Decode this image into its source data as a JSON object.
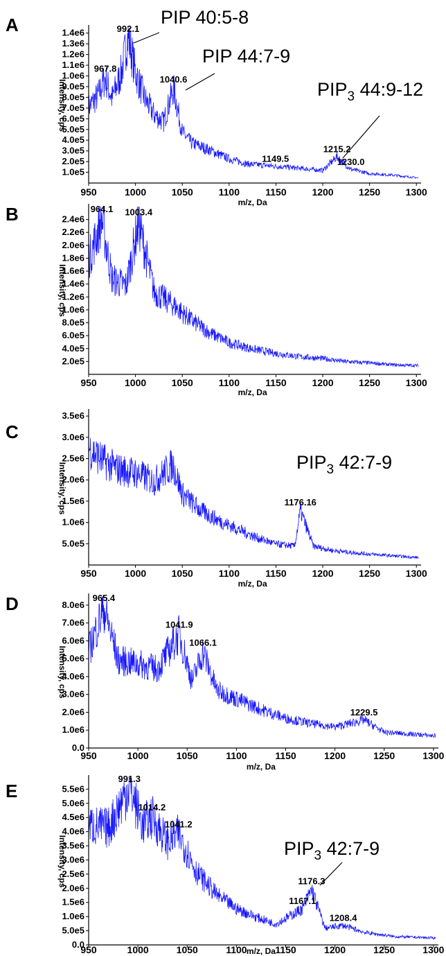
{
  "colors": {
    "trace": "#1515ff",
    "axis": "#000000",
    "text": "#000000"
  },
  "chart_data": [
    {
      "type": "line",
      "panel": "A",
      "xlabel": "m/z, Da",
      "ylabel": "Intensity, cps",
      "xlim": [
        950,
        1305
      ],
      "ylim": [
        0,
        1450000
      ],
      "x_ticks": [
        950,
        1000,
        1050,
        1100,
        1150,
        1200,
        1250,
        1300
      ],
      "x_tick_labels": [
        "950",
        "1000",
        "1050",
        "1100",
        "1150",
        "1200",
        "1250",
        "1300"
      ],
      "y_ticks": [
        100000,
        200000,
        300000,
        400000,
        500000,
        600000,
        700000,
        800000,
        900000,
        1000000,
        1100000,
        1200000,
        1300000,
        1400000
      ],
      "y_tick_labels": [
        "1.0e5",
        "2.0e5",
        "3.0e5",
        "4.0e5",
        "5.0e5",
        "6.0e5",
        "7.0e5",
        "8.0e5",
        "9.0e5",
        "1.0e6",
        "1.1e6",
        "1.2e6",
        "1.3e6",
        "1.4e6"
      ],
      "series": [
        {
          "x": [
            950,
            960,
            967.8,
            975,
            985,
            992.1,
            1000,
            1010,
            1020,
            1030,
            1040.6,
            1050,
            1060,
            1080,
            1100,
            1120,
            1149.5,
            1175,
            1200,
            1215.2,
            1230.0,
            1250,
            1275,
            1300
          ],
          "y": [
            720000,
            830000,
            1000000,
            800000,
            1050000,
            1400000,
            1050000,
            800000,
            650000,
            580000,
            900000,
            480000,
            380000,
            310000,
            230000,
            180000,
            160000,
            140000,
            120000,
            250000,
            130000,
            90000,
            75000,
            50000
          ]
        }
      ],
      "peak_labels": [
        {
          "x": 967.8,
          "y": 1000000,
          "text": "967.8"
        },
        {
          "x": 992.1,
          "y": 1400000,
          "text": "992.1"
        },
        {
          "x": 1040.6,
          "y": 900000,
          "text": "1040.6"
        },
        {
          "x": 1149.5,
          "y": 160000,
          "text": "1149.5"
        },
        {
          "x": 1215.2,
          "y": 250000,
          "text": "1215.2"
        },
        {
          "x": 1230.0,
          "y": 130000,
          "text": "1230.0"
        }
      ],
      "annotations": [
        {
          "main": "PIP 40:5-8",
          "sub": "",
          "tail": ""
        },
        {
          "main": "PIP 44:7-9",
          "sub": "",
          "tail": ""
        },
        {
          "main": "PIP",
          "sub": "3",
          "tail": " 44:9-12"
        }
      ]
    },
    {
      "type": "line",
      "panel": "B",
      "xlabel": "m/z, Da",
      "ylabel": "Intensity, cps",
      "xlim": [
        950,
        1305
      ],
      "ylim": [
        0,
        2600000
      ],
      "x_ticks": [
        950,
        1000,
        1050,
        1100,
        1150,
        1200,
        1250,
        1300
      ],
      "x_tick_labels": [
        "950",
        "1000",
        "1050",
        "1100",
        "1150",
        "1200",
        "1250",
        "1300"
      ],
      "y_ticks": [
        200000,
        400000,
        600000,
        800000,
        1000000,
        1200000,
        1400000,
        1600000,
        1800000,
        2000000,
        2200000,
        2400000
      ],
      "y_tick_labels": [
        "2.0e5",
        "4.0e5",
        "6.0e5",
        "8.0e5",
        "1.0e6",
        "1.2e6",
        "1.4e6",
        "1.6e6",
        "1.8e6",
        "2.0e6",
        "2.2e6",
        "2.4e6"
      ],
      "series": [
        {
          "x": [
            950,
            964.1,
            975,
            990,
            1003.4,
            1020,
            1040,
            1060,
            1080,
            1100,
            1125,
            1150,
            1175,
            1200,
            1225,
            1250,
            1275,
            1300
          ],
          "y": [
            1800000,
            2450000,
            1500000,
            1400000,
            2400000,
            1300000,
            1100000,
            850000,
            650000,
            500000,
            400000,
            330000,
            280000,
            250000,
            200000,
            180000,
            150000,
            140000
          ]
        }
      ],
      "peak_labels": [
        {
          "x": 964.1,
          "y": 2450000,
          "text": "964.1"
        },
        {
          "x": 1003.4,
          "y": 2400000,
          "text": "1003.4"
        }
      ],
      "annotations": []
    },
    {
      "type": "line",
      "panel": "C",
      "xlabel": "m/z, Da",
      "ylabel": "Intensity, cps",
      "xlim": [
        950,
        1305
      ],
      "ylim": [
        0,
        3600000
      ],
      "x_ticks": [
        950,
        1000,
        1050,
        1100,
        1150,
        1200,
        1250,
        1300
      ],
      "x_tick_labels": [
        "950",
        "1000",
        "1050",
        "1100",
        "1150",
        "1200",
        "1250",
        "1300"
      ],
      "y_ticks": [
        500000,
        1000000,
        1500000,
        2000000,
        2500000,
        3000000,
        3500000
      ],
      "y_tick_labels": [
        "5.0e5",
        "1.0e6",
        "1.5e6",
        "2.0e6",
        "2.5e6",
        "3.0e6",
        "3.5e6"
      ],
      "series": [
        {
          "x": [
            950,
            965,
            980,
            1000,
            1020,
            1040,
            1050,
            1070,
            1090,
            1110,
            1130,
            1150,
            1170,
            1176.16,
            1190,
            1210,
            1230,
            1250,
            1275,
            1300
          ],
          "y": [
            2800000,
            2500000,
            2300000,
            2200000,
            2000000,
            2400000,
            1700000,
            1300000,
            1050000,
            850000,
            650000,
            500000,
            450000,
            1300000,
            450000,
            350000,
            300000,
            260000,
            220000,
            180000
          ]
        }
      ],
      "peak_labels": [
        {
          "x": 1176.16,
          "y": 1300000,
          "text": "1176.16"
        }
      ],
      "annotations": [
        {
          "main": "PIP",
          "sub": "3",
          "tail": " 42:7-9"
        }
      ]
    },
    {
      "type": "line",
      "panel": "D",
      "xlabel": "m/z, Da",
      "ylabel": "Intensity, cps",
      "xlim": [
        950,
        1305
      ],
      "ylim": [
        0,
        8500000
      ],
      "x_ticks": [
        950,
        1000,
        1050,
        1100,
        1150,
        1200,
        1250,
        1300
      ],
      "x_tick_labels": [
        "950",
        "1000",
        "1050",
        "1100",
        "1150",
        "1200",
        "1250",
        "1300"
      ],
      "y_ticks": [
        0,
        1000000,
        2000000,
        3000000,
        4000000,
        5000000,
        6000000,
        7000000,
        8000000
      ],
      "y_tick_labels": [
        "0.0",
        "1.0e6",
        "2.0e6",
        "3.0e6",
        "4.0e6",
        "5.0e6",
        "6.0e6",
        "7.0e6",
        "8.0e6"
      ],
      "series": [
        {
          "x": [
            950,
            965.4,
            980,
            1000,
            1020,
            1041.9,
            1055,
            1066.1,
            1080,
            1100,
            1125,
            1150,
            1175,
            1200,
            1229.5,
            1250,
            1275,
            1300
          ],
          "y": [
            5500000,
            8000000,
            5000000,
            4800000,
            4500000,
            6500000,
            3800000,
            5500000,
            3300000,
            2800000,
            2200000,
            1700000,
            1400000,
            1200000,
            1600000,
            900000,
            800000,
            700000
          ]
        }
      ],
      "peak_labels": [
        {
          "x": 965.4,
          "y": 8000000,
          "text": "965.4"
        },
        {
          "x": 1041.9,
          "y": 6500000,
          "text": "1041.9"
        },
        {
          "x": 1066.1,
          "y": 5500000,
          "text": "1066.1"
        },
        {
          "x": 1229.5,
          "y": 1600000,
          "text": "1229.5"
        }
      ],
      "annotations": []
    },
    {
      "type": "line",
      "panel": "E",
      "xlabel": "m/z, Da",
      "ylabel": "Intensity, cps",
      "xlim": [
        950,
        1305
      ],
      "ylim": [
        0,
        5900000
      ],
      "x_ticks": [
        950,
        1000,
        1050,
        1100,
        1150,
        1200,
        1250,
        1300
      ],
      "x_tick_labels": [
        "950",
        "1000",
        "1050",
        "1100",
        "1150",
        "1200",
        "1250",
        "1300"
      ],
      "y_ticks": [
        0,
        500000,
        1000000,
        1500000,
        2000000,
        2500000,
        3000000,
        3500000,
        4000000,
        4500000,
        5000000,
        5500000
      ],
      "y_tick_labels": [
        "0.0",
        "5.0e5",
        "1.0e6",
        "1.5e6",
        "2.0e6",
        "2.5e6",
        "3.0e6",
        "3.5e6",
        "4.0e6",
        "4.5e6",
        "5.0e6",
        "5.5e6"
      ],
      "series": [
        {
          "x": [
            950,
            970,
            991.3,
            1005,
            1014.2,
            1030,
            1041.2,
            1060,
            1080,
            1100,
            1120,
            1140,
            1167.1,
            1176.3,
            1190,
            1208.4,
            1230,
            1260,
            1300
          ],
          "y": [
            4300000,
            4200000,
            5700000,
            4300000,
            4600000,
            3700000,
            4000000,
            2600000,
            1800000,
            1300000,
            1000000,
            750000,
            1300000,
            2000000,
            600000,
            700000,
            450000,
            300000,
            250000
          ]
        }
      ],
      "peak_labels": [
        {
          "x": 991.3,
          "y": 5700000,
          "text": "991.3"
        },
        {
          "x": 1014.2,
          "y": 4600000,
          "text": "1014.2"
        },
        {
          "x": 1041.2,
          "y": 4000000,
          "text": "1041.2"
        },
        {
          "x": 1167.1,
          "y": 1300000,
          "text": "1167.1"
        },
        {
          "x": 1176.3,
          "y": 2000000,
          "text": "1176.3"
        },
        {
          "x": 1208.4,
          "y": 700000,
          "text": "1208.4"
        }
      ],
      "annotations": [
        {
          "main": "PIP",
          "sub": "3",
          "tail": " 42:7-9"
        }
      ]
    }
  ]
}
